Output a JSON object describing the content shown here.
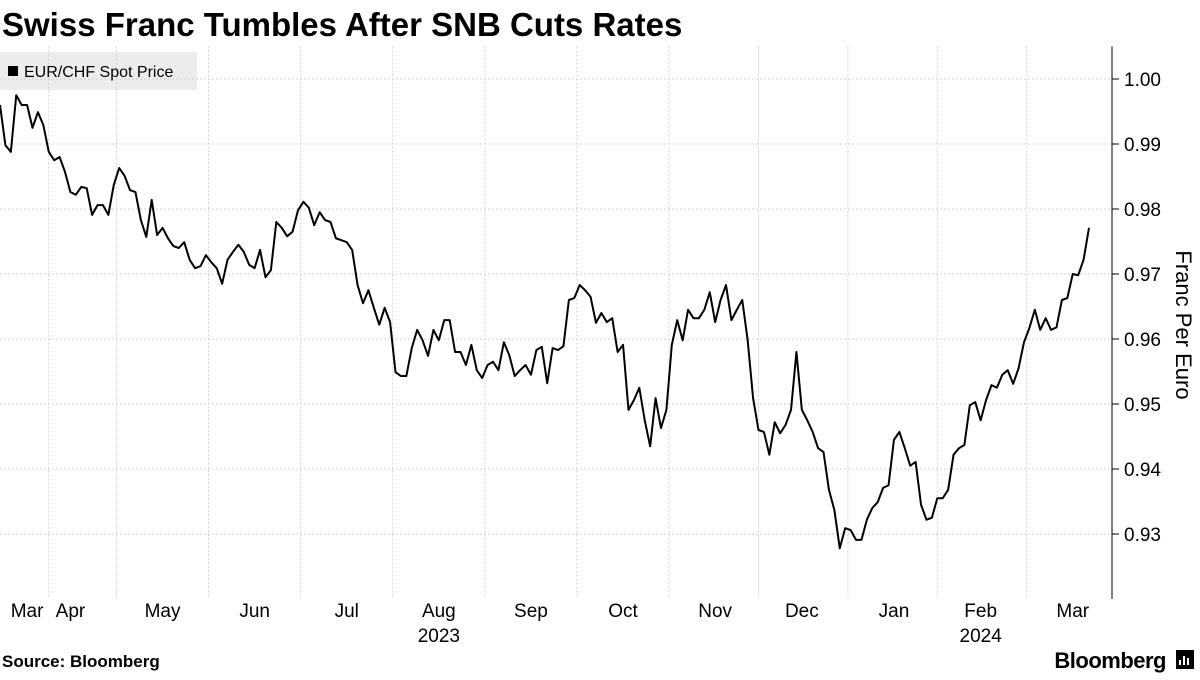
{
  "chart_data": {
    "type": "line",
    "title": "Swiss Franc Tumbles After SNB Cuts Rates",
    "source": "Source: Bloomberg",
    "brand": "Bloomberg",
    "y_axis_label": "Franc Per Euro",
    "legend_position": "top-left",
    "grid": true,
    "series": [
      {
        "name": "EUR/CHF Spot Price",
        "color": "#000000",
        "values": [
          0.996,
          0.9898,
          0.9888,
          0.9975,
          0.996,
          0.996,
          0.9925,
          0.9949,
          0.9929,
          0.9888,
          0.9875,
          0.988,
          0.9857,
          0.9826,
          0.9822,
          0.9834,
          0.9832,
          0.9791,
          0.9806,
          0.9806,
          0.9791,
          0.9837,
          0.9863,
          0.9851,
          0.9829,
          0.9826,
          0.9783,
          0.9757,
          0.9814,
          0.976,
          0.9771,
          0.9755,
          0.9743,
          0.974,
          0.9749,
          0.9722,
          0.9709,
          0.9712,
          0.9729,
          0.9718,
          0.9709,
          0.9685,
          0.9722,
          0.9734,
          0.9745,
          0.9734,
          0.9714,
          0.9709,
          0.9737,
          0.9695,
          0.9706,
          0.978,
          0.9771,
          0.9758,
          0.9765,
          0.9798,
          0.9811,
          0.9802,
          0.9775,
          0.9795,
          0.9783,
          0.978,
          0.9755,
          0.9752,
          0.9749,
          0.9737,
          0.9683,
          0.9655,
          0.9675,
          0.9648,
          0.9622,
          0.9648,
          0.9626,
          0.9549,
          0.9543,
          0.9543,
          0.9586,
          0.9614,
          0.9598,
          0.9574,
          0.9614,
          0.9598,
          0.9629,
          0.9629,
          0.958,
          0.958,
          0.956,
          0.9591,
          0.9552,
          0.954,
          0.956,
          0.9565,
          0.9552,
          0.9595,
          0.9575,
          0.9543,
          0.9552,
          0.956,
          0.9545,
          0.9583,
          0.9588,
          0.9532,
          0.9586,
          0.9583,
          0.9589,
          0.966,
          0.9663,
          0.9683,
          0.9675,
          0.9665,
          0.9625,
          0.964,
          0.9626,
          0.9632,
          0.958,
          0.9591,
          0.9491,
          0.9506,
          0.9525,
          0.9475,
          0.9435,
          0.9509,
          0.9463,
          0.9491,
          0.9591,
          0.9629,
          0.9598,
          0.9645,
          0.9632,
          0.9632,
          0.9645,
          0.9672,
          0.9626,
          0.966,
          0.9683,
          0.9629,
          0.9645,
          0.966,
          0.9598,
          0.9509,
          0.946,
          0.9457,
          0.9422,
          0.9472,
          0.9455,
          0.9468,
          0.9491,
          0.958,
          0.9491,
          0.9475,
          0.9457,
          0.9432,
          0.9426,
          0.9368,
          0.9337,
          0.9278,
          0.9309,
          0.9306,
          0.9291,
          0.9291,
          0.9322,
          0.934,
          0.9349,
          0.9371,
          0.9375,
          0.9445,
          0.9457,
          0.9432,
          0.9405,
          0.9411,
          0.9345,
          0.9322,
          0.9325,
          0.9355,
          0.9355,
          0.9368,
          0.9422,
          0.9432,
          0.9437,
          0.9498,
          0.9503,
          0.9475,
          0.9506,
          0.9529,
          0.9525,
          0.9545,
          0.9552,
          0.9531,
          0.9555,
          0.9595,
          0.9617,
          0.9645,
          0.9614,
          0.9632,
          0.9614,
          0.9618,
          0.966,
          0.9663,
          0.97,
          0.9698,
          0.9722,
          0.9771
        ]
      }
    ],
    "xlim": [
      0,
      201
    ],
    "xticks": [
      {
        "value": 5,
        "label": "Mar"
      },
      {
        "value": 13,
        "label": "Apr"
      },
      {
        "value": 30,
        "label": "May"
      },
      {
        "value": 47,
        "label": "Jun"
      },
      {
        "value": 64,
        "label": "Jul"
      },
      {
        "value": 81,
        "label": "Aug"
      },
      {
        "value": 98,
        "label": "Sep"
      },
      {
        "value": 115,
        "label": "Oct"
      },
      {
        "value": 132,
        "label": "Nov"
      },
      {
        "value": 148,
        "label": "Dec"
      },
      {
        "value": 165,
        "label": "Jan"
      },
      {
        "value": 181,
        "label": "Feb"
      },
      {
        "value": 198,
        "label": "Mar"
      }
    ],
    "xticks_year": [
      {
        "value": 81,
        "label": "2023"
      },
      {
        "value": 181,
        "label": "2024"
      }
    ],
    "ylim": [
      0.92,
      1.005
    ],
    "yticks": [
      {
        "value": 0.93,
        "label": "0.93"
      },
      {
        "value": 0.94,
        "label": "0.94"
      },
      {
        "value": 0.95,
        "label": "0.95"
      },
      {
        "value": 0.96,
        "label": "0.96"
      },
      {
        "value": 0.97,
        "label": "0.97"
      },
      {
        "value": 0.98,
        "label": "0.98"
      },
      {
        "value": 0.99,
        "label": "0.99"
      },
      {
        "value": 1.0,
        "label": "1.00"
      }
    ]
  }
}
